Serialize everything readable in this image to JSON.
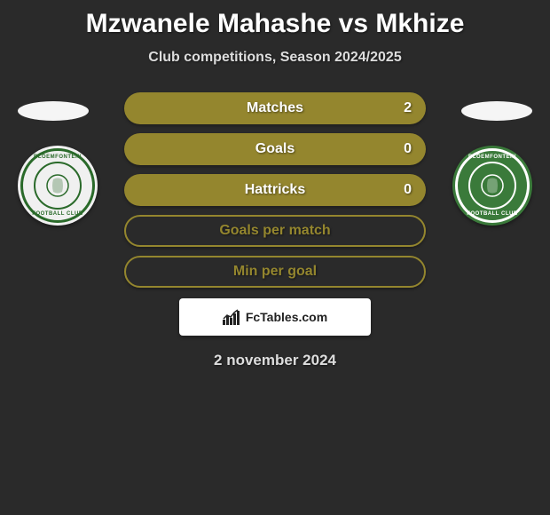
{
  "title": "Mzwanele Mahashe vs Mkhize",
  "subtitle": "Club competitions, Season 2024/2025",
  "date": "2 november 2024",
  "attribution": "FcTables.com",
  "badges": {
    "left": {
      "top_text": "BLOEMFONTEIN",
      "bottom_text": "FOOTBALL CLUB",
      "center_text": "CELTIC"
    },
    "right": {
      "top_text": "BLOEMFONTEIN",
      "bottom_text": "FOOTBALL CLUB",
      "center_text": "CELTIC"
    }
  },
  "stats": [
    {
      "label": "Matches",
      "value": "2",
      "style": "filled"
    },
    {
      "label": "Goals",
      "value": "0",
      "style": "filled"
    },
    {
      "label": "Hattricks",
      "value": "0",
      "style": "filled"
    },
    {
      "label": "Goals per match",
      "value": "",
      "style": "outlined"
    },
    {
      "label": "Min per goal",
      "value": "",
      "style": "outlined"
    }
  ],
  "colors": {
    "background": "#2a2a2a",
    "accent": "#94862e",
    "badge_green": "#3a7a3a",
    "badge_light": "#f0f0f0"
  }
}
